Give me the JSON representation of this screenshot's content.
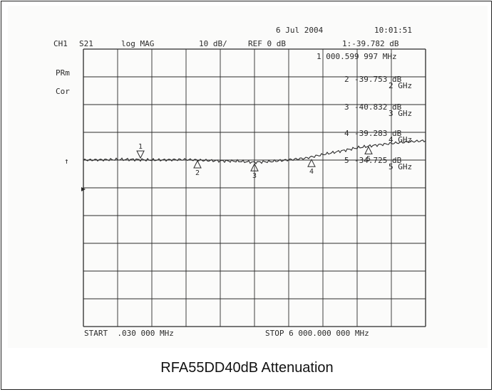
{
  "header": {
    "date": "6 Jul 2004",
    "time": "10:01:51",
    "channel": "CH1",
    "param": "S21",
    "format": "log MAG",
    "scale": "10 dB/",
    "ref": "REF 0 dB",
    "marker_readout": "1:-39.782 dB",
    "marker_freq": "1 000.599 997 MHz"
  },
  "side_labels": {
    "prm": "PRm",
    "cor": "Cor",
    "arrow": "↑"
  },
  "markers": [
    {
      "id": "1",
      "value": "-39.782 dB",
      "freq": "1 000.599 997 MHz"
    },
    {
      "id": "2",
      "value": "-39.753 dB",
      "freq": "2 GHz"
    },
    {
      "id": "3",
      "value": "-40.832 dB",
      "freq": "3 GHz"
    },
    {
      "id": "4",
      "value": "-39.283 dB",
      "freq": "4 GHz"
    },
    {
      "id": "5",
      "value": "-34.725 dB",
      "freq": "5 GHz"
    }
  ],
  "footer": {
    "start": "START  .030 000 MHz",
    "stop": "STOP 6 000.000 000 MHz"
  },
  "caption": "RFA55DD40dB Attenuation",
  "chart_data": {
    "type": "line",
    "title": "RFA55DD40dB Attenuation",
    "xlabel": "",
    "ylabel": "",
    "x_unit": "MHz",
    "y_unit": "dB",
    "xlim": [
      0.03,
      6000
    ],
    "ylim": [
      -100,
      0
    ],
    "grid": true,
    "series": [
      {
        "values_x": [
          0.03,
          300,
          600,
          900,
          1200,
          1500,
          1800,
          2100,
          2400,
          2700,
          3000,
          3300,
          3600,
          3900,
          4200,
          4500,
          4800,
          5100,
          5400,
          5700,
          6000
        ],
        "values_y": [
          -40.0,
          -39.9,
          -39.8,
          -39.8,
          -40.0,
          -39.9,
          -39.8,
          -40.1,
          -40.3,
          -40.4,
          -40.8,
          -40.5,
          -39.9,
          -39.3,
          -38.0,
          -36.8,
          -35.6,
          -34.7,
          -34.0,
          -33.4,
          -33.0
        ]
      }
    ],
    "marker_points": [
      {
        "id": "1",
        "x": 1000.6,
        "y": -39.782
      },
      {
        "id": "2",
        "x": 2000,
        "y": -39.753
      },
      {
        "id": "3",
        "x": 3000,
        "y": -40.832
      },
      {
        "id": "4",
        "x": 4000,
        "y": -39.283
      },
      {
        "id": "5",
        "x": 5000,
        "y": -34.725
      }
    ]
  },
  "colors": {
    "ink": "#2b2b2b",
    "paper": "#fbfbfa"
  }
}
